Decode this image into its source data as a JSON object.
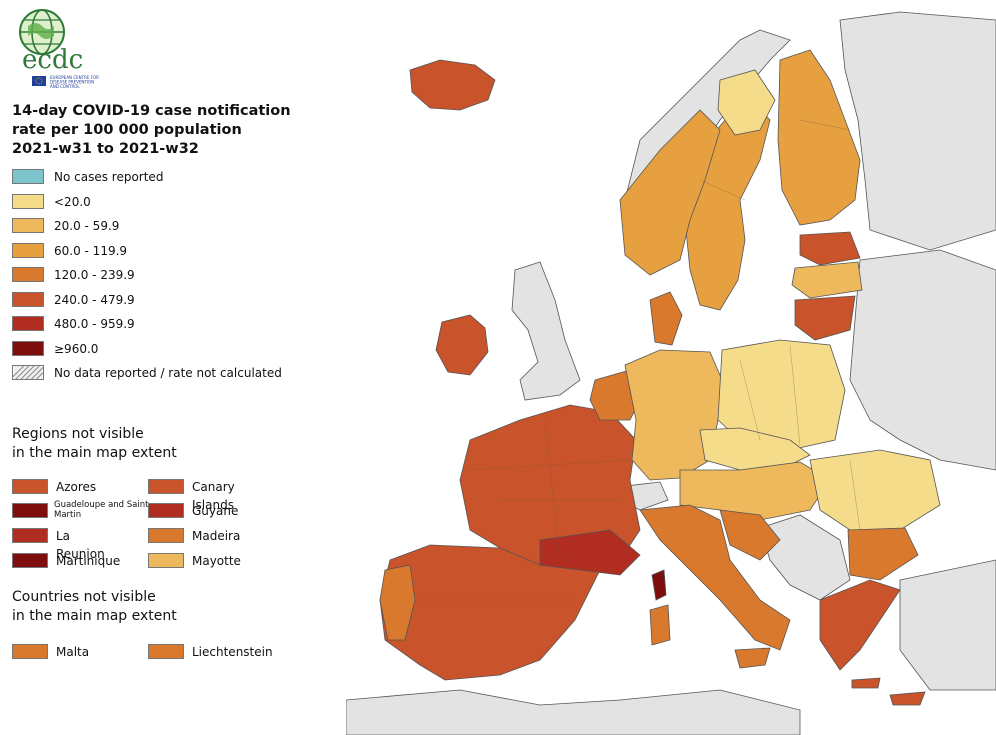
{
  "logo": {
    "text": "ecdc",
    "subtitle_lines": [
      "EUROPEAN CENTRE FOR",
      "DISEASE PREVENTION",
      "AND CONTROL"
    ]
  },
  "title_lines": [
    "14-day COVID-19 case notification",
    "rate per 100 000 population",
    "2021-w31 to 2021-w32"
  ],
  "legend": [
    {
      "label": "No cases reported",
      "color": "#7ec4cc"
    },
    {
      "label": "<20.0",
      "color": "#f5dc8a"
    },
    {
      "label": "20.0 - 59.9",
      "color": "#eeb95c"
    },
    {
      "label": "60.0 - 119.9",
      "color": "#e7a040"
    },
    {
      "label": "120.0 - 239.9",
      "color": "#d9792d"
    },
    {
      "label": "240.0 - 479.9",
      "color": "#c9532a"
    },
    {
      "label": "480.0 - 959.9",
      "color": "#b12d21"
    },
    {
      "label": "≥960.0",
      "color": "#7e0d0d"
    },
    {
      "label": "No data reported / rate not calculated",
      "color": "hatch"
    }
  ],
  "regions_heading": [
    "Regions not visible",
    "in the main map extent"
  ],
  "regions": [
    {
      "label": "Azores",
      "color": "#c9532a"
    },
    {
      "label": "Canary Islands",
      "color": "#c9532a"
    },
    {
      "label": "Guadeloupe and Saint Martin",
      "color": "#7e0d0d"
    },
    {
      "label": "Guyane",
      "color": "#b12d21"
    },
    {
      "label": "La Reunion",
      "color": "#b12d21"
    },
    {
      "label": "Madeira",
      "color": "#d9792d"
    },
    {
      "label": "Martinique",
      "color": "#7e0d0d"
    },
    {
      "label": "Mayotte",
      "color": "#eeb95c"
    }
  ],
  "countries_heading": [
    "Countries not visible",
    "in the main map extent"
  ],
  "countries": [
    {
      "label": "Malta",
      "color": "#d9792d"
    },
    {
      "label": "Liechtenstein",
      "color": "#d9792d"
    }
  ],
  "map_colors": {
    "sea": "#ffffff",
    "non_eu": "#e3e3e3",
    "border": "#555555"
  }
}
